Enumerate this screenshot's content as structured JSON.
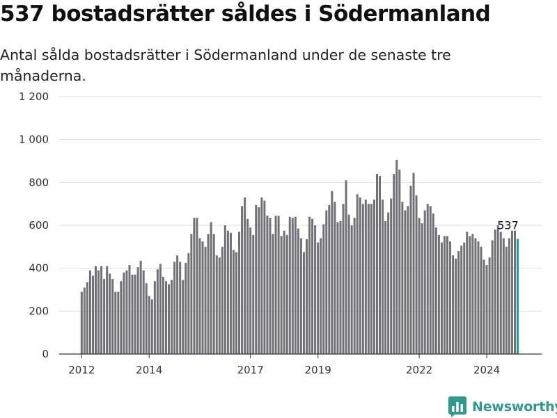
{
  "title": "537 bostadsrätter såldes i Södermanland",
  "subtitle": "Antal sålda bostadsrätter i Södermanland under de senaste tre månaderna.",
  "brand": {
    "name": "Newsworthy",
    "icon": "newsworthy-logo-icon",
    "color": "#2f9a8c"
  },
  "chart_data": {
    "type": "bar",
    "ylim": [
      0,
      1200
    ],
    "yticks": [
      0,
      200,
      400,
      600,
      800,
      1000,
      1200
    ],
    "ytick_labels": [
      "0",
      "200",
      "400",
      "600",
      "800",
      "1 000",
      "1 200"
    ],
    "grid": true,
    "start_month": "2012-01",
    "xticks": [
      {
        "label": "2012",
        "index": 0
      },
      {
        "label": "2014",
        "index": 24
      },
      {
        "label": "2017",
        "index": 60
      },
      {
        "label": "2019",
        "index": 84
      },
      {
        "label": "2022",
        "index": 120
      },
      {
        "label": "2024",
        "index": 144
      }
    ],
    "bar_color": "#717077",
    "highlight_color": "#16a196",
    "highlight_label": "537",
    "values": [
      290,
      310,
      335,
      390,
      365,
      410,
      390,
      410,
      350,
      410,
      375,
      350,
      290,
      290,
      340,
      380,
      390,
      415,
      370,
      370,
      405,
      435,
      390,
      330,
      270,
      255,
      340,
      395,
      420,
      360,
      340,
      325,
      345,
      430,
      460,
      430,
      345,
      425,
      470,
      560,
      635,
      635,
      540,
      525,
      500,
      560,
      615,
      560,
      460,
      450,
      500,
      600,
      575,
      565,
      485,
      475,
      570,
      690,
      730,
      630,
      590,
      555,
      695,
      685,
      730,
      715,
      645,
      635,
      560,
      645,
      645,
      550,
      575,
      555,
      640,
      635,
      640,
      585,
      540,
      475,
      535,
      640,
      630,
      600,
      520,
      540,
      605,
      670,
      695,
      760,
      710,
      615,
      620,
      700,
      810,
      650,
      600,
      635,
      745,
      730,
      700,
      720,
      700,
      700,
      720,
      840,
      830,
      720,
      620,
      660,
      725,
      840,
      905,
      860,
      710,
      670,
      690,
      785,
      845,
      740,
      635,
      610,
      670,
      700,
      690,
      655,
      590,
      555,
      520,
      550,
      550,
      525,
      460,
      445,
      480,
      505,
      520,
      570,
      550,
      560,
      540,
      525,
      500,
      440,
      415,
      450,
      530,
      580,
      600,
      570,
      540,
      500,
      540,
      575,
      575,
      537
    ]
  }
}
